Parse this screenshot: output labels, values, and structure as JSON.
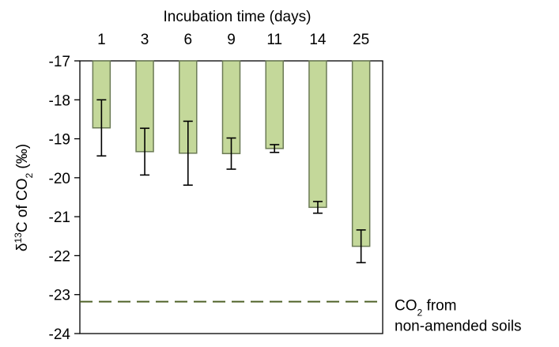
{
  "chart_data": {
    "type": "bar",
    "xlabel": "Incubation time (days)",
    "ylabel": {
      "main": "δ",
      "sup": "13",
      "mid": "C of CO",
      "sub": "2",
      "tail": " (‰)"
    },
    "categories": [
      "1",
      "3",
      "6",
      "9",
      "11",
      "14",
      "25"
    ],
    "values": [
      -18.72,
      -19.33,
      -19.37,
      -19.38,
      -19.25,
      -20.76,
      -21.76
    ],
    "errors": [
      0.72,
      0.6,
      0.82,
      0.4,
      0.1,
      0.15,
      0.42
    ],
    "ylim": [
      -24,
      -17
    ],
    "yticks": [
      "-17",
      "-18",
      "-19",
      "-20",
      "-21",
      "-22",
      "-23",
      "-24"
    ],
    "bar_baseline": -17,
    "x_axis_position": "top",
    "grid": false,
    "reference_line": {
      "value": -23.18,
      "label_line1_main": "CO",
      "label_line1_sub": "2",
      "label_line1_tail": " from",
      "label_line2": "non-amended soils"
    },
    "colors": {
      "bar_fill": "#c4d89a",
      "bar_stroke": "#6b7a55",
      "reference_line": "#4f6228",
      "error_bar": "#000000"
    }
  }
}
